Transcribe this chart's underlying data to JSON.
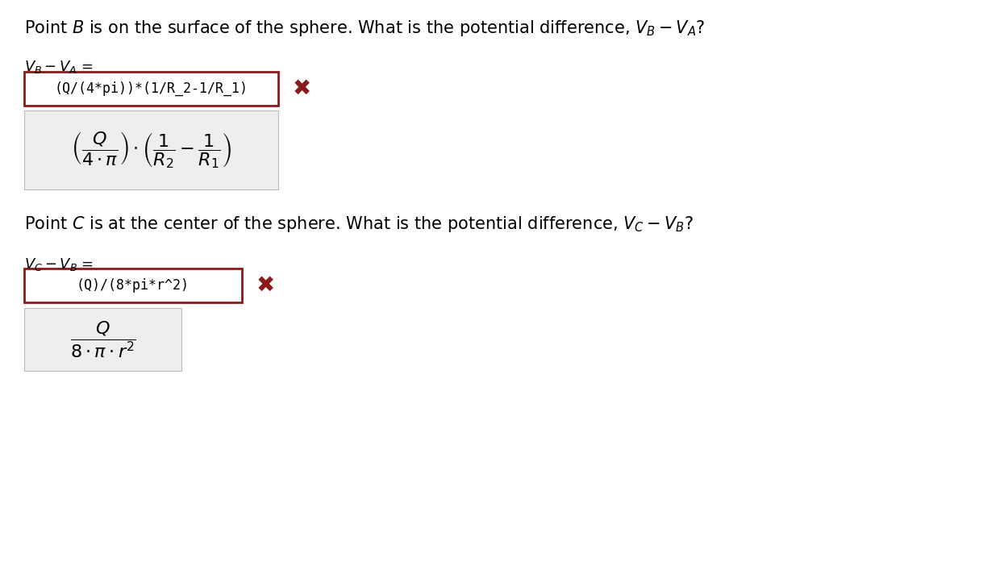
{
  "bg_color": "#ffffff",
  "title_line1": "Point $\\mathit{B}$ is on the surface of the sphere. What is the potential difference, $V_B - V_A$?",
  "var_line1": "$V_B - V_A$ =",
  "input_box1_text": "(Q/(4*pi))*(1/R_2-1/R_1)",
  "cross_color": "#8B1A1A",
  "formula1_latex": "$\\left(\\dfrac{Q}{4 \\cdot \\pi}\\right) \\cdot \\left(\\dfrac{1}{R_2} - \\dfrac{1}{R_1}\\right)$",
  "title_line2": "Point $\\mathit{C}$ is at the center of the sphere. What is the potential difference, $V_C - V_B$?",
  "var_line2": "$V_C - V_B$ =",
  "input_box2_text": "(Q)/(8*pi*r^2)",
  "formula2_latex": "$\\dfrac{Q}{8 \\cdot \\pi \\cdot r^2}$",
  "input_box_border_color": "#8B1A1A",
  "input_box_fill": "#ffffff",
  "formula_box_fill": "#eeeeee",
  "text_color": "#000000",
  "font_size_title": 15,
  "font_size_var": 13,
  "font_size_input": 12,
  "font_size_formula": 16
}
